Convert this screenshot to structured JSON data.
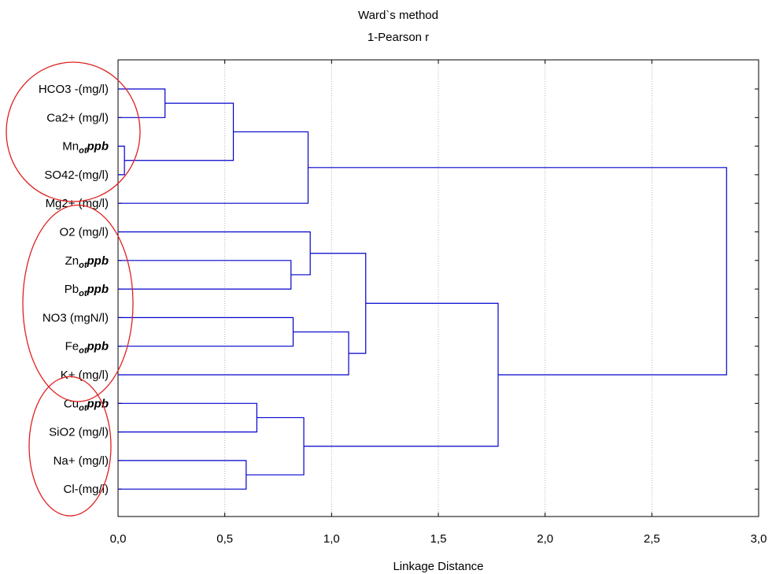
{
  "chart_data": {
    "type": "dendrogram",
    "title": "Ward`s method",
    "subtitle": "1-Pearson r",
    "xlabel": "Linkage Distance",
    "xlim": [
      0,
      3.0
    ],
    "x_ticks": [
      0,
      0.5,
      1.0,
      1.5,
      2.0,
      2.5,
      3.0
    ],
    "x_tick_labels": [
      "0,0",
      "0,5",
      "1,0",
      "1,5",
      "2,0",
      "2,5",
      "3,0"
    ],
    "grid": "vertical dotted",
    "leaves": [
      {
        "name": "HCO3 -(mg/l)"
      },
      {
        "name": "Ca2+ (mg/l)"
      },
      {
        "name": "Mn",
        "sub": "ot",
        "suffix": "ppb"
      },
      {
        "name": "SO42-(mg/l)"
      },
      {
        "name": "Mg2+ (mg/l)"
      },
      {
        "name": "O2 (mg/l)"
      },
      {
        "name": "Zn",
        "sub": "ot",
        "suffix": "ppb"
      },
      {
        "name": "Pb",
        "sub": "ot",
        "suffix": "ppb"
      },
      {
        "name": "NO3 (mgN/l)"
      },
      {
        "name": "Fe",
        "sub": "ot",
        "suffix": "ppb"
      },
      {
        "name": "K+ (mg/l)"
      },
      {
        "name": "Cu",
        "sub": "ot",
        "suffix": "ppb"
      },
      {
        "name": "SiO2 (mg/l)"
      },
      {
        "name": "Na+ (mg/l)"
      },
      {
        "name": "Cl-(mg/l)"
      }
    ],
    "merges": [
      {
        "a": "L0",
        "b": "L1",
        "height": 0.22
      },
      {
        "a": "L2",
        "b": "L3",
        "height": 0.03
      },
      {
        "a": "M0",
        "b": "M1",
        "height": 0.54
      },
      {
        "a": "M2",
        "b": "L4",
        "height": 0.89
      },
      {
        "a": "L6",
        "b": "L7",
        "height": 0.81
      },
      {
        "a": "L5",
        "b": "M4",
        "height": 0.9
      },
      {
        "a": "L8",
        "b": "L9",
        "height": 0.82
      },
      {
        "a": "M6",
        "b": "L10",
        "height": 1.08
      },
      {
        "a": "M5",
        "b": "M7",
        "height": 1.16
      },
      {
        "a": "L11",
        "b": "L12",
        "height": 0.65
      },
      {
        "a": "L13",
        "b": "L14",
        "height": 0.6
      },
      {
        "a": "M9",
        "b": "M10",
        "height": 0.87
      },
      {
        "a": "M8",
        "b": "M11",
        "height": 1.78
      },
      {
        "a": "M3",
        "b": "M12",
        "height": 2.85
      }
    ],
    "line_color": "#0000cc",
    "annotation_color": "#e02020",
    "annotation_groups": [
      {
        "leaves": [
          0,
          3
        ]
      },
      {
        "leaves": [
          5,
          10
        ]
      },
      {
        "leaves": [
          11,
          14
        ]
      }
    ]
  }
}
